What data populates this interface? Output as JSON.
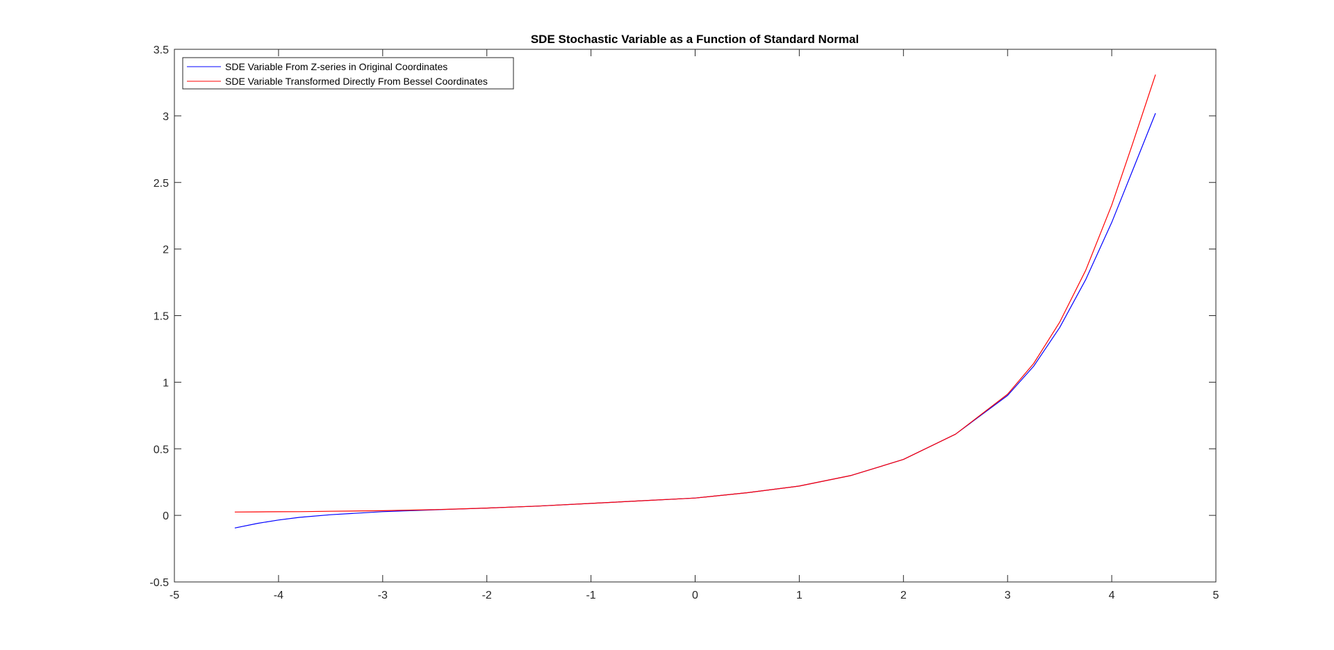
{
  "chart_data": {
    "type": "line",
    "title": "SDE Stochastic Variable as a Function of Standard Normal",
    "xlabel": "",
    "ylabel": "",
    "xlim": [
      -5,
      5
    ],
    "ylim": [
      -0.5,
      3.5
    ],
    "xticks": [
      -5,
      -4,
      -3,
      -2,
      -1,
      0,
      1,
      2,
      3,
      4,
      5
    ],
    "yticks": [
      -0.5,
      0,
      0.5,
      1,
      1.5,
      2,
      2.5,
      3,
      3.5
    ],
    "grid": false,
    "legend_position": "top-left",
    "series": [
      {
        "name": "SDE Variable From Z-series in Original Coordinates",
        "color": "#0000ff",
        "x": [
          -4.42,
          -4.2,
          -4.0,
          -3.8,
          -3.5,
          -3.0,
          -2.5,
          -2.0,
          -1.5,
          -1.0,
          -0.5,
          0.0,
          0.5,
          1.0,
          1.5,
          2.0,
          2.5,
          3.0,
          3.25,
          3.5,
          3.75,
          4.0,
          4.2,
          4.42
        ],
        "y": [
          -0.095,
          -0.06,
          -0.035,
          -0.015,
          0.005,
          0.028,
          0.042,
          0.055,
          0.07,
          0.09,
          0.11,
          0.13,
          0.17,
          0.22,
          0.3,
          0.42,
          0.61,
          0.9,
          1.12,
          1.41,
          1.77,
          2.2,
          2.59,
          3.02
        ]
      },
      {
        "name": "SDE Variable Transformed Directly From Bessel Coordinates",
        "color": "#ff0000",
        "x": [
          -4.42,
          -4.2,
          -4.0,
          -3.8,
          -3.5,
          -3.0,
          -2.5,
          -2.0,
          -1.5,
          -1.0,
          -0.5,
          0.0,
          0.5,
          1.0,
          1.5,
          2.0,
          2.5,
          3.0,
          3.25,
          3.5,
          3.75,
          4.0,
          4.2,
          4.42
        ],
        "y": [
          0.025,
          0.026,
          0.027,
          0.028,
          0.031,
          0.035,
          0.043,
          0.055,
          0.07,
          0.09,
          0.11,
          0.13,
          0.17,
          0.22,
          0.3,
          0.42,
          0.61,
          0.91,
          1.14,
          1.45,
          1.84,
          2.33,
          2.79,
          3.31
        ]
      }
    ]
  }
}
